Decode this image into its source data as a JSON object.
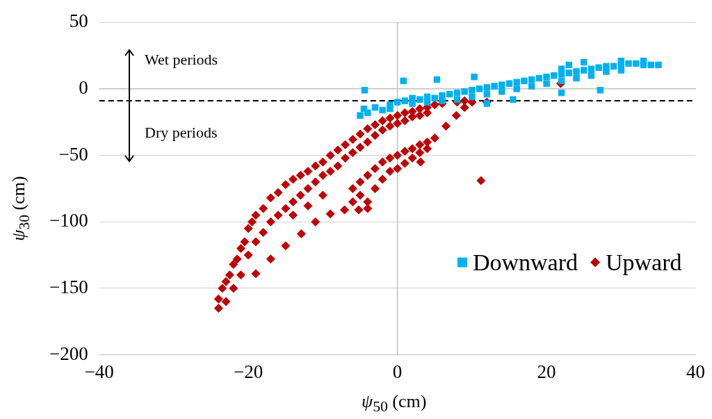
{
  "chart_data": {
    "type": "scatter",
    "xlabel": "ψ$_{50}$ (cm)",
    "ylabel": "ψ$_{30}$ (cm)",
    "xlim": [
      -40,
      40
    ],
    "xticks": [
      {
        "value": -40,
        "label": "−40"
      },
      {
        "value": -20,
        "label": "−20"
      },
      0,
      20,
      40
    ],
    "ylim": [
      -200,
      50
    ],
    "yticks": [
      {
        "value": -200,
        "label": "−200"
      },
      {
        "value": -150,
        "label": "−150"
      },
      {
        "value": -100,
        "label": "−100"
      },
      {
        "value": -50,
        "label": "−50"
      },
      0,
      50
    ],
    "grid": "y",
    "legend": "bottom right",
    "annotations": [
      "Wet periods",
      "Dry periods"
    ],
    "ref_lines": [
      {
        "axis": "y",
        "value": -9,
        "line_style": "dashed",
        "color": "#000000"
      },
      {
        "axis": "x",
        "value": 0,
        "line_style": "solid",
        "color": "#bfbfbf"
      }
    ],
    "series": [
      {
        "name": "Downward",
        "color": "#00b0f0",
        "marker": "square",
        "x": [
          -5,
          -4.5,
          -4,
          -3,
          -2,
          -1,
          0,
          -1,
          1,
          2,
          2,
          3,
          4,
          4,
          5,
          6,
          6,
          7,
          8,
          8,
          9,
          10,
          10,
          11,
          12,
          12,
          13,
          14,
          14,
          15,
          16,
          16,
          17,
          18,
          18,
          19,
          20,
          20,
          21,
          22,
          22,
          23,
          24,
          24,
          25,
          26,
          26,
          27,
          28,
          28,
          29,
          30,
          30,
          31,
          32,
          33,
          34,
          35,
          22,
          23,
          25,
          30,
          33,
          12,
          15.5,
          -4.4,
          0.8,
          5.3,
          10.3,
          27.2,
          22
        ],
        "values": [
          -20,
          -15,
          -18,
          -14,
          -16,
          -12,
          -10,
          -15,
          -9,
          -11,
          -7,
          -8,
          -6,
          -10,
          -7,
          -5,
          -9,
          -4,
          -3,
          -8,
          -2,
          -1,
          -6,
          0,
          1,
          -4,
          2,
          3,
          -2,
          4,
          5,
          0,
          6,
          7,
          2,
          8,
          9,
          4,
          10,
          11,
          6,
          12,
          13,
          8,
          14,
          15,
          10,
          16,
          17,
          13,
          17,
          18,
          14,
          19,
          19,
          18,
          18,
          18,
          15,
          18,
          20,
          21,
          21,
          -11,
          -8,
          -1,
          6,
          7,
          9,
          -1,
          -3
        ]
      },
      {
        "name": "Upward",
        "color": "#c00000",
        "marker": "diamond",
        "x": [
          -24,
          -24,
          -23.5,
          -23,
          -23,
          -22.5,
          -22,
          -22,
          -21.5,
          -21,
          -21,
          -20.5,
          -20,
          -20,
          -19.5,
          -19,
          -19,
          -18,
          -18,
          -17,
          -17,
          -16,
          -16,
          -15,
          -15,
          -14,
          -14,
          -13,
          -13,
          -12,
          -12,
          -11,
          -11,
          -10,
          -10,
          -9,
          -9,
          -8,
          -8,
          -7,
          -7,
          -6,
          -6,
          -5,
          -5,
          -4,
          -4,
          -3,
          -3,
          -2,
          -2,
          -1,
          -1,
          0,
          0,
          1,
          1,
          2,
          2,
          3,
          3,
          4,
          4,
          -6,
          -6,
          -5,
          -5,
          -4,
          -4,
          -3,
          -3,
          -2,
          -2,
          -1,
          -1,
          0,
          0,
          1,
          1,
          2,
          2,
          3,
          3,
          4,
          4,
          -19,
          -17,
          -15,
          -12.9,
          -11,
          -9,
          -7.1,
          -5.2,
          -4,
          3.1,
          5,
          6.5,
          7.9,
          9,
          -14,
          -12,
          -10,
          5,
          6,
          8,
          9,
          10,
          12,
          11.2,
          21.9
        ],
        "values": [
          -165,
          -158,
          -150,
          -160,
          -145,
          -140,
          -150,
          -132,
          -128,
          -140,
          -120,
          -115,
          -125,
          -105,
          -100,
          -115,
          -95,
          -90,
          -108,
          -82,
          -100,
          -78,
          -95,
          -72,
          -90,
          -68,
          -85,
          -65,
          -80,
          -62,
          -75,
          -58,
          -70,
          -55,
          -65,
          -50,
          -62,
          -46,
          -58,
          -42,
          -52,
          -38,
          -48,
          -34,
          -44,
          -30,
          -40,
          -27,
          -35,
          -24,
          -31,
          -22,
          -28,
          -20,
          -26,
          -18,
          -24,
          -17,
          -21,
          -15,
          -20,
          -14,
          -18,
          -75,
          -85,
          -70,
          -80,
          -65,
          -90,
          -60,
          -75,
          -55,
          -68,
          -52,
          -62,
          -50,
          -60,
          -47,
          -56,
          -45,
          -52,
          -42,
          -48,
          -40,
          -45,
          -139,
          -128,
          -118,
          -109,
          -100,
          -94,
          -91,
          -91,
          -85,
          -55,
          -37,
          -28,
          -20,
          -14,
          -95,
          -88,
          -80,
          -12,
          -11,
          -10,
          -9,
          -10,
          -10,
          -69,
          4
        ]
      }
    ]
  }
}
